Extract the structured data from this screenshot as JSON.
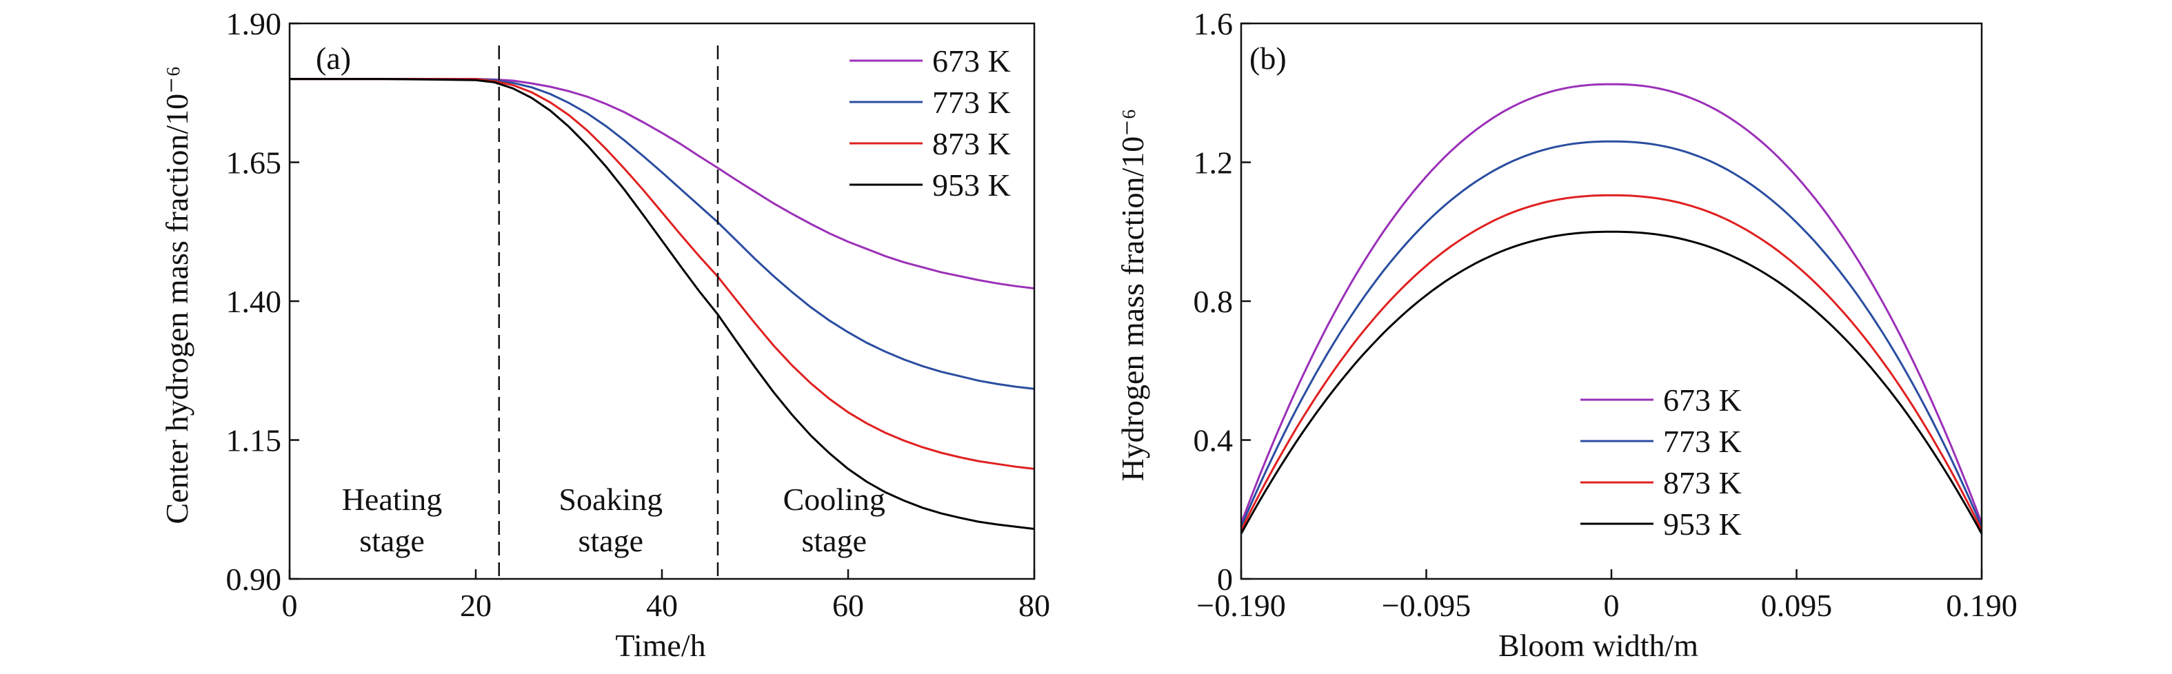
{
  "colors": {
    "s673": "#9b30b8",
    "s773": "#2a4da0",
    "s873": "#e02020",
    "s953": "#000000",
    "axis": "#111111"
  },
  "chart_data": [
    {
      "panel": "(a)",
      "type": "line",
      "xlabel": "Time/h",
      "ylabel": "Center hydrogen mass fraction/10⁻⁶",
      "xlim": [
        0,
        80
      ],
      "ylim": [
        0.9,
        1.9
      ],
      "xticks": [
        "0",
        "20",
        "40",
        "60",
        "80"
      ],
      "yticks": [
        "0.90",
        "1.15",
        "1.40",
        "1.65",
        "1.90"
      ],
      "legend_position": "top-right",
      "vlines": [
        22.5,
        46.0
      ],
      "stage_labels": [
        {
          "line1": "Heating",
          "line2": "stage",
          "x": 11
        },
        {
          "line1": "Soaking",
          "line2": "stage",
          "x": 34.5
        },
        {
          "line1": "Cooling",
          "line2": "stage",
          "x": 58.5
        }
      ],
      "x": [
        0,
        10,
        20,
        22,
        24,
        26,
        28,
        30,
        32,
        34,
        36,
        38,
        40,
        42,
        44,
        46,
        48,
        50,
        52,
        54,
        56,
        58,
        60,
        62,
        64,
        66,
        68,
        70,
        72,
        74,
        76,
        78,
        80
      ],
      "series": [
        {
          "name": "673 K",
          "values": [
            1.8,
            1.8,
            1.8,
            1.799,
            1.797,
            1.792,
            1.786,
            1.778,
            1.768,
            1.755,
            1.74,
            1.722,
            1.703,
            1.683,
            1.661,
            1.64,
            1.618,
            1.597,
            1.576,
            1.557,
            1.539,
            1.522,
            1.507,
            1.494,
            1.481,
            1.47,
            1.461,
            1.452,
            1.445,
            1.438,
            1.432,
            1.427,
            1.423
          ]
        },
        {
          "name": "773 K",
          "values": [
            1.8,
            1.8,
            1.8,
            1.798,
            1.793,
            1.785,
            1.773,
            1.757,
            1.738,
            1.715,
            1.689,
            1.661,
            1.632,
            1.602,
            1.572,
            1.542,
            1.509,
            1.476,
            1.445,
            1.416,
            1.389,
            1.365,
            1.344,
            1.325,
            1.309,
            1.295,
            1.283,
            1.273,
            1.265,
            1.257,
            1.251,
            1.246,
            1.242
          ]
        },
        {
          "name": "873 K",
          "values": [
            1.8,
            1.8,
            1.8,
            1.796,
            1.789,
            1.776,
            1.758,
            1.735,
            1.707,
            1.674,
            1.638,
            1.6,
            1.56,
            1.52,
            1.481,
            1.444,
            1.402,
            1.36,
            1.32,
            1.284,
            1.252,
            1.224,
            1.2,
            1.18,
            1.163,
            1.149,
            1.137,
            1.127,
            1.119,
            1.112,
            1.107,
            1.102,
            1.098
          ]
        },
        {
          "name": "953 K",
          "values": [
            1.8,
            1.8,
            1.798,
            1.794,
            1.783,
            1.766,
            1.743,
            1.714,
            1.68,
            1.642,
            1.6,
            1.555,
            1.509,
            1.463,
            1.418,
            1.376,
            1.328,
            1.281,
            1.236,
            1.195,
            1.158,
            1.126,
            1.098,
            1.075,
            1.056,
            1.041,
            1.028,
            1.018,
            1.01,
            1.003,
            0.998,
            0.994,
            0.99
          ]
        }
      ]
    },
    {
      "panel": "(b)",
      "type": "line",
      "xlabel": "Bloom width/m",
      "ylabel": "Hydrogen mass fraction/10⁻⁶",
      "xlim": [
        -0.19,
        0.19
      ],
      "ylim": [
        0,
        1.6
      ],
      "xticks": [
        "−0.190",
        "−0.095",
        "0",
        "0.095",
        "0.190"
      ],
      "yticks": [
        "0",
        "0.4",
        "0.8",
        "1.2",
        "1.6"
      ],
      "legend_position": "bottom-center",
      "profile": {
        "edge_exponent": 2.25
      },
      "series": [
        {
          "name": "673 K",
          "center": 1.425,
          "edge": 0.16
        },
        {
          "name": "773 K",
          "center": 1.26,
          "edge": 0.15
        },
        {
          "name": "873 K",
          "center": 1.105,
          "edge": 0.14
        },
        {
          "name": "953 K",
          "center": 1.0,
          "edge": 0.13
        }
      ]
    }
  ]
}
